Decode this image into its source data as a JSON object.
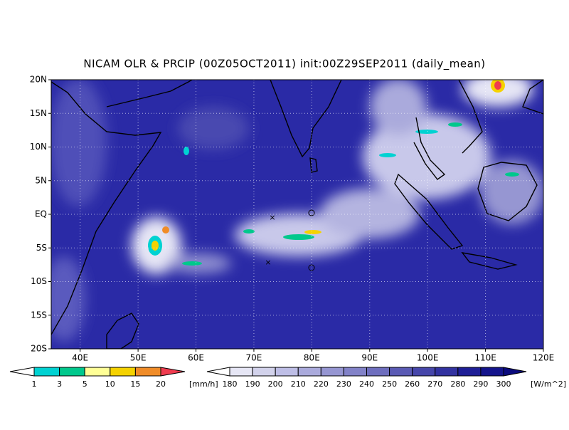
{
  "title": "NICAM OLR & PRCIP (00Z05OCT2011) init:00Z29SEP2011 (daily_mean)",
  "y_axis_labels": [
    "20N",
    "15N",
    "10N",
    "5N",
    "EQ",
    "5S",
    "10S",
    "15S",
    "20S"
  ],
  "x_axis_labels": [
    "40E",
    "50E",
    "60E",
    "70E",
    "80E",
    "90E",
    "100E",
    "110E",
    "120E"
  ],
  "precip_colorbar": {
    "labels": [
      "1",
      "3",
      "5",
      "10",
      "15",
      "20"
    ],
    "unit": "[mm/h]",
    "colors": [
      "#ffffff",
      "#00d2d2",
      "#00c88c",
      "#ffff96",
      "#f5d200",
      "#f08c28",
      "#f03c50"
    ]
  },
  "olr_colorbar": {
    "labels": [
      "180",
      "190",
      "200",
      "210",
      "220",
      "230",
      "240",
      "250",
      "260",
      "270",
      "280",
      "290",
      "300"
    ],
    "unit": "[W/m^2]",
    "colors": [
      "#ffffff",
      "#e6e6f5",
      "#d2d2eb",
      "#bebee6",
      "#aaaadc",
      "#9696d2",
      "#8282c8",
      "#6e6ebe",
      "#5a5ab4",
      "#4646aa",
      "#3232a0",
      "#1e1e96",
      "#14148c",
      "#0a0a7d"
    ]
  }
}
